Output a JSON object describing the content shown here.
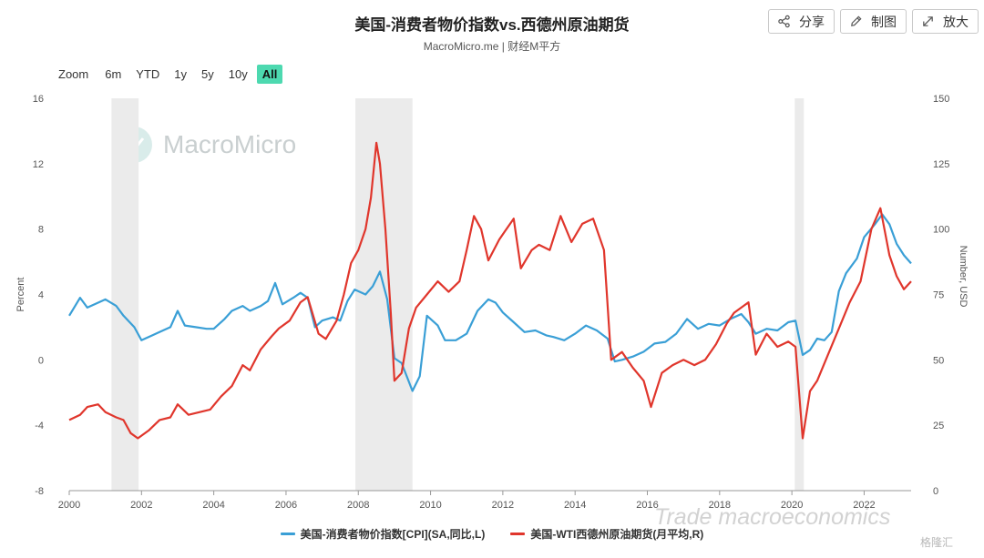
{
  "header": {
    "title": "美国-消费者物价指数vs.西德州原油期货",
    "subtitle": "MacroMicro.me | 财经M平方"
  },
  "toolbar": {
    "share_label": "分享",
    "draw_label": "制图",
    "enlarge_label": "放大"
  },
  "zoom": {
    "label": "Zoom",
    "options": [
      "6m",
      "YTD",
      "1y",
      "5y",
      "10y",
      "All"
    ],
    "active": "All"
  },
  "watermarks": {
    "brand": "MacroMicro",
    "overlay": "Trade macroeconomics",
    "corner": "格隆汇"
  },
  "colors": {
    "cpi": "#3a9fd6",
    "wti": "#e0362c",
    "recession": "#ebebeb",
    "active_zoom": "#4dd9b0"
  },
  "chart_data": {
    "type": "line",
    "title": "美国-消费者物价指数vs.西德州原油期货",
    "left_axis": {
      "label": "Percent",
      "ticks": [
        -8,
        -4,
        0,
        4,
        8,
        12,
        16
      ],
      "range": [
        -8,
        16
      ]
    },
    "right_axis": {
      "label": "Number, USD",
      "ticks": [
        0,
        25,
        50,
        75,
        100,
        125,
        150
      ],
      "range": [
        0,
        150
      ]
    },
    "x_axis": {
      "ticks": [
        "2000",
        "2002",
        "2004",
        "2006",
        "2008",
        "2010",
        "2012",
        "2014",
        "2016",
        "2018",
        "2020",
        "2022"
      ],
      "range": [
        2000,
        2023.3
      ]
    },
    "recession_bands": [
      [
        2001.17,
        2001.92
      ],
      [
        2007.92,
        2009.5
      ],
      [
        2020.08,
        2020.33
      ]
    ],
    "grid": false,
    "legend_position": "bottom",
    "series": [
      {
        "name": "美国-消费者物价指数[CPI](SA,同比,L)",
        "axis": "left",
        "x": [
          2000.0,
          2000.3,
          2000.5,
          2000.8,
          2001.0,
          2001.3,
          2001.5,
          2001.8,
          2002.0,
          2002.3,
          2002.5,
          2002.8,
          2003.0,
          2003.2,
          2003.5,
          2003.8,
          2004.0,
          2004.3,
          2004.5,
          2004.8,
          2005.0,
          2005.3,
          2005.5,
          2005.7,
          2005.9,
          2006.2,
          2006.4,
          2006.6,
          2006.8,
          2007.0,
          2007.3,
          2007.5,
          2007.7,
          2007.9,
          2008.2,
          2008.4,
          2008.6,
          2008.8,
          2009.0,
          2009.2,
          2009.5,
          2009.7,
          2009.9,
          2010.2,
          2010.4,
          2010.7,
          2011.0,
          2011.3,
          2011.6,
          2011.8,
          2012.0,
          2012.3,
          2012.6,
          2012.9,
          2013.2,
          2013.4,
          2013.7,
          2014.0,
          2014.3,
          2014.6,
          2014.9,
          2015.1,
          2015.3,
          2015.6,
          2015.9,
          2016.2,
          2016.5,
          2016.8,
          2017.1,
          2017.4,
          2017.7,
          2018.0,
          2018.3,
          2018.6,
          2018.8,
          2019.0,
          2019.3,
          2019.6,
          2019.9,
          2020.1,
          2020.3,
          2020.5,
          2020.7,
          2020.9,
          2021.1,
          2021.3,
          2021.5,
          2021.8,
          2022.0,
          2022.3,
          2022.5,
          2022.7,
          2022.9,
          2023.1,
          2023.3
        ],
        "values": [
          2.7,
          3.8,
          3.2,
          3.5,
          3.7,
          3.3,
          2.7,
          2.0,
          1.2,
          1.5,
          1.7,
          2.0,
          3.0,
          2.1,
          2.0,
          1.9,
          1.9,
          2.5,
          3.0,
          3.3,
          3.0,
          3.3,
          3.6,
          4.7,
          3.4,
          3.8,
          4.1,
          3.8,
          2.0,
          2.4,
          2.6,
          2.4,
          3.6,
          4.3,
          4.0,
          4.5,
          5.4,
          3.7,
          0.1,
          -0.2,
          -1.9,
          -1.0,
          2.7,
          2.1,
          1.2,
          1.2,
          1.6,
          3.0,
          3.7,
          3.5,
          2.9,
          2.3,
          1.7,
          1.8,
          1.5,
          1.4,
          1.2,
          1.6,
          2.1,
          1.8,
          1.3,
          -0.1,
          0.0,
          0.2,
          0.5,
          1.0,
          1.1,
          1.6,
          2.5,
          1.9,
          2.2,
          2.1,
          2.5,
          2.8,
          2.3,
          1.6,
          1.9,
          1.8,
          2.3,
          2.4,
          0.3,
          0.6,
          1.3,
          1.2,
          1.7,
          4.2,
          5.3,
          6.2,
          7.5,
          8.3,
          8.9,
          8.3,
          7.1,
          6.4,
          5.9
        ]
      },
      {
        "name": "美国-WTI西德州原油期货(月平均,R)",
        "axis": "right",
        "x": [
          2000.0,
          2000.3,
          2000.5,
          2000.8,
          2001.0,
          2001.3,
          2001.5,
          2001.7,
          2001.9,
          2002.2,
          2002.5,
          2002.8,
          2003.0,
          2003.3,
          2003.6,
          2003.9,
          2004.2,
          2004.5,
          2004.8,
          2005.0,
          2005.3,
          2005.6,
          2005.8,
          2006.1,
          2006.4,
          2006.6,
          2006.9,
          2007.1,
          2007.4,
          2007.6,
          2007.8,
          2008.0,
          2008.2,
          2008.35,
          2008.5,
          2008.6,
          2008.75,
          2008.9,
          2009.0,
          2009.2,
          2009.4,
          2009.6,
          2009.9,
          2010.2,
          2010.5,
          2010.8,
          2011.0,
          2011.2,
          2011.4,
          2011.6,
          2011.9,
          2012.1,
          2012.3,
          2012.5,
          2012.8,
          2013.0,
          2013.3,
          2013.6,
          2013.9,
          2014.2,
          2014.5,
          2014.8,
          2015.0,
          2015.3,
          2015.6,
          2015.9,
          2016.1,
          2016.4,
          2016.7,
          2017.0,
          2017.3,
          2017.6,
          2017.9,
          2018.2,
          2018.4,
          2018.6,
          2018.8,
          2019.0,
          2019.3,
          2019.6,
          2019.9,
          2020.1,
          2020.3,
          2020.5,
          2020.7,
          2021.0,
          2021.3,
          2021.6,
          2021.9,
          2022.2,
          2022.45,
          2022.7,
          2022.9,
          2023.1,
          2023.3
        ],
        "values": [
          27,
          29,
          32,
          33,
          30,
          28,
          27,
          22,
          20,
          23,
          27,
          28,
          33,
          29,
          30,
          31,
          36,
          40,
          48,
          46,
          54,
          59,
          62,
          65,
          72,
          74,
          60,
          58,
          65,
          75,
          87,
          92,
          100,
          112,
          133,
          125,
          100,
          68,
          42,
          45,
          62,
          70,
          75,
          80,
          76,
          80,
          92,
          105,
          100,
          88,
          96,
          100,
          104,
          85,
          92,
          94,
          92,
          105,
          95,
          102,
          104,
          92,
          50,
          53,
          47,
          42,
          32,
          45,
          48,
          50,
          48,
          50,
          56,
          64,
          68,
          70,
          72,
          52,
          60,
          55,
          57,
          55,
          20,
          38,
          42,
          52,
          62,
          72,
          80,
          100,
          108,
          90,
          82,
          77,
          80
        ]
      }
    ]
  }
}
